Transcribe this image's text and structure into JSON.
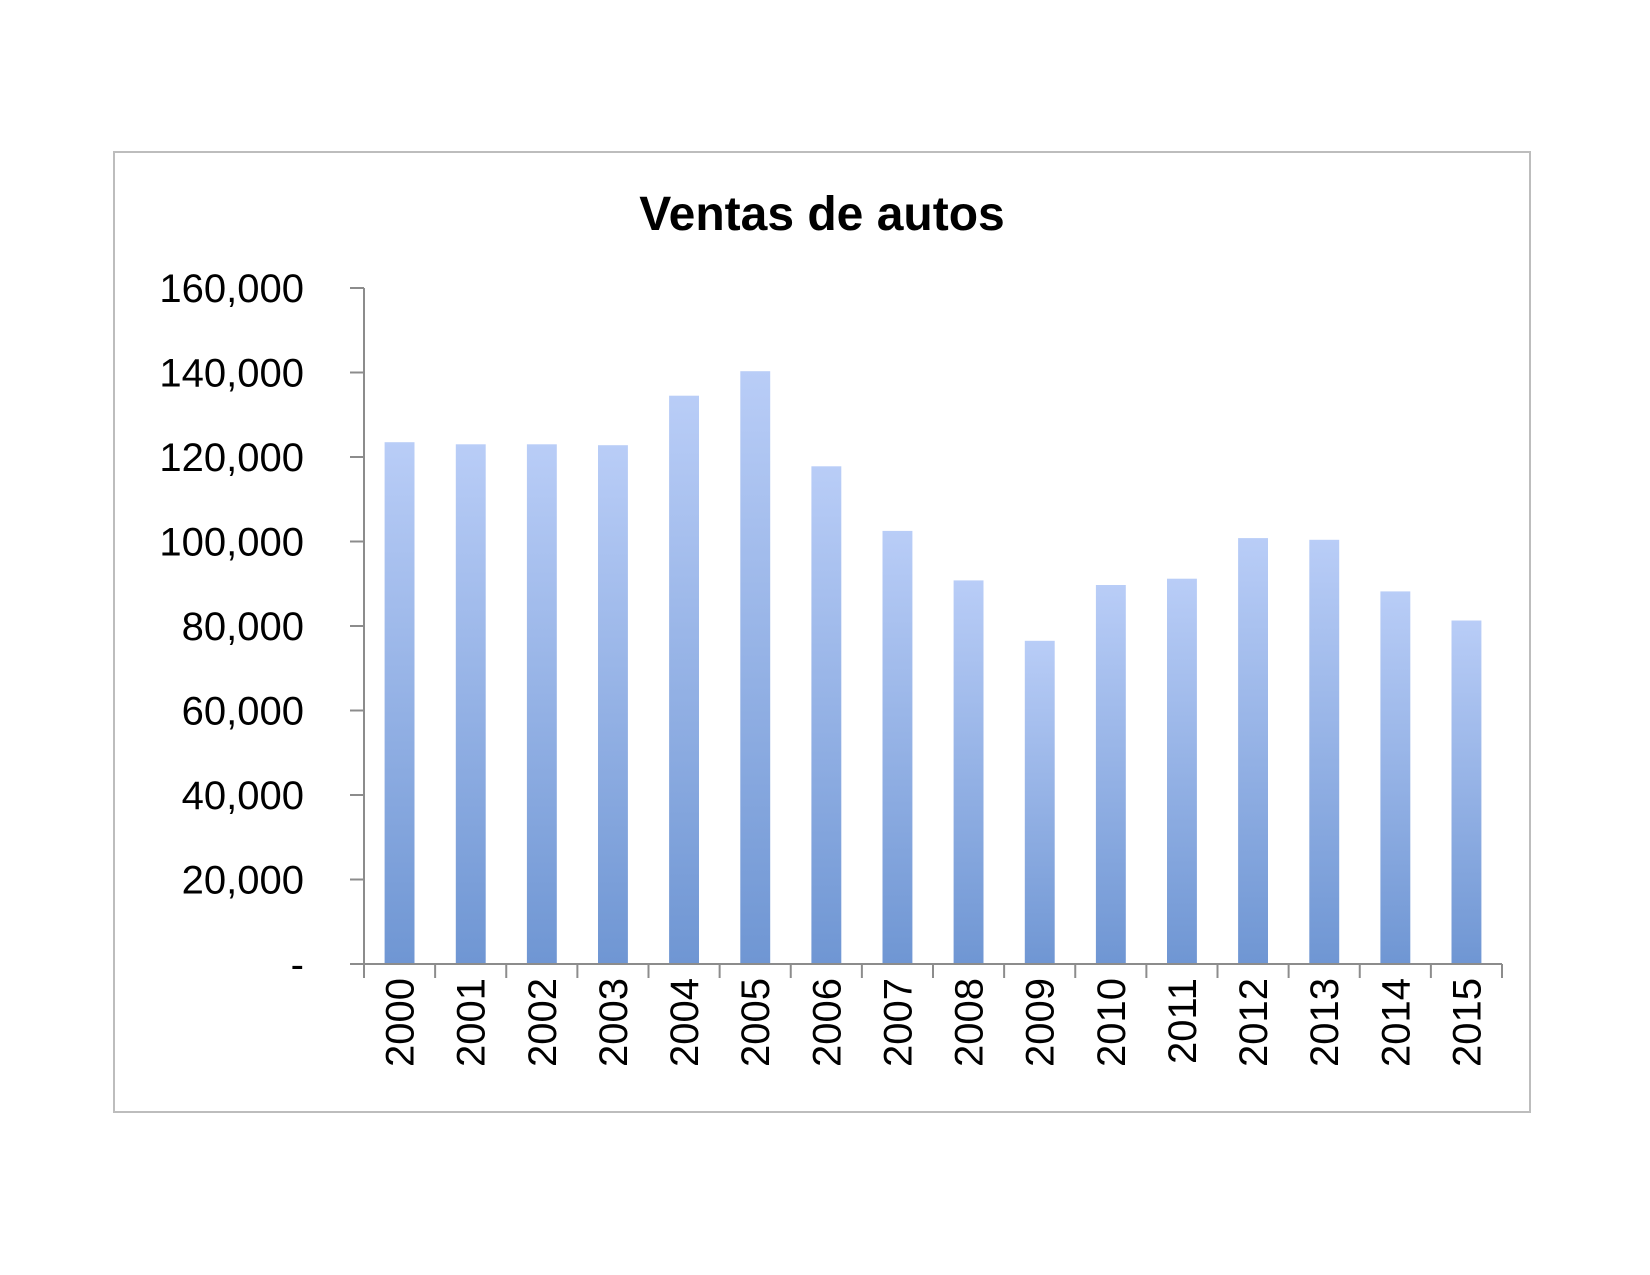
{
  "chart_data": {
    "type": "bar",
    "title": "Ventas de autos",
    "xlabel": "",
    "ylabel": "",
    "categories": [
      "2000",
      "2001",
      "2002",
      "2003",
      "2004",
      "2005",
      "2006",
      "2007",
      "2008",
      "2009",
      "2010",
      "2011",
      "2012",
      "2013",
      "2014",
      "2015"
    ],
    "series": [
      {
        "values": [
          123500,
          123000,
          123000,
          122800,
          134500,
          140300,
          117800,
          102500,
          90800,
          76500,
          89700,
          91200,
          100800,
          100400,
          88200,
          81300
        ]
      }
    ],
    "ylim": [
      0,
      160000
    ],
    "yticks": [
      0,
      20000,
      40000,
      60000,
      80000,
      100000,
      120000,
      140000,
      160000
    ],
    "ytick_labels": [
      "-",
      "20,000",
      "40,000",
      "60,000",
      "80,000",
      "100,000",
      "120,000",
      "140,000",
      "160,000"
    ],
    "grid": false,
    "legend": "none",
    "colors": {
      "bar_top": "#b9cdf7",
      "bar_bottom": "#6f96d3"
    }
  }
}
